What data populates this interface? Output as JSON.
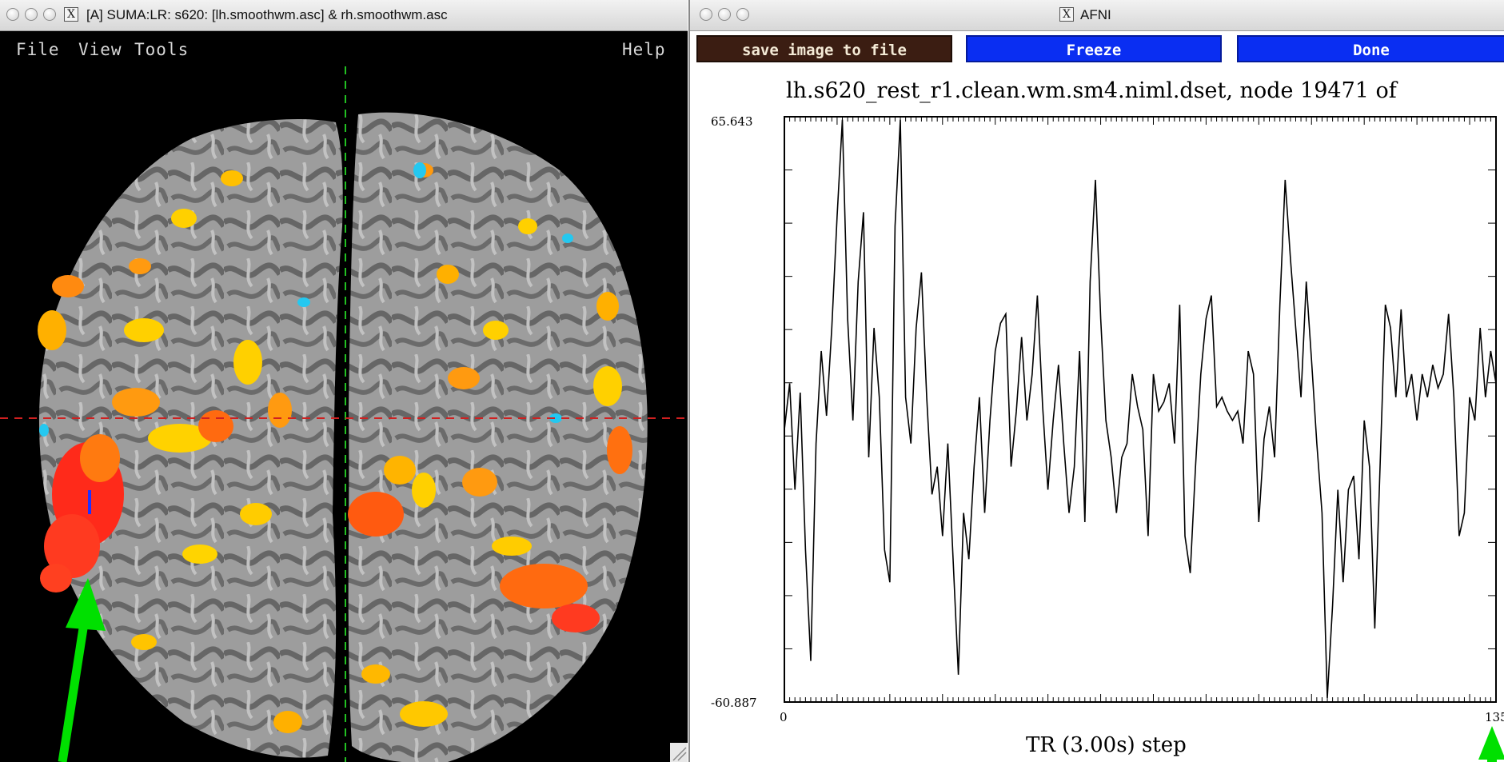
{
  "suma": {
    "title": "[A] SUMA:LR: s620: [lh.smoothwm.asc] & rh.smoothwm.asc",
    "menu": {
      "file": "File",
      "view": "View",
      "tools": "Tools",
      "help": "Help"
    }
  },
  "afni": {
    "title": "AFNI",
    "buttons": {
      "save": "save image to file",
      "freeze": "Freeze",
      "done": "Done"
    }
  },
  "chart_data": {
    "type": "line",
    "title": "lh.s620_rest_r1.clean.wm.sm4.niml.dset, node 19471 of",
    "xlabel": "TR (3.00s) step",
    "ylabel": "",
    "x_tick_labels": [
      "0",
      "135."
    ],
    "y_tick_labels": [
      "65.643",
      "-60.887"
    ],
    "xlim": [
      0,
      135
    ],
    "ylim": [
      -60.887,
      65.643
    ],
    "grid": false,
    "series": [
      {
        "values": [
          -2,
          8,
          -15,
          6,
          -28,
          -52,
          -5,
          15,
          1,
          20,
          44,
          65,
          22,
          0,
          30,
          45,
          -8,
          20,
          5,
          -28,
          -35,
          42,
          65,
          5,
          -5,
          20,
          32,
          5,
          -16,
          -10,
          -25,
          -5,
          -30,
          -55,
          -20,
          -30,
          -10,
          5,
          -20,
          0,
          15,
          21,
          23,
          -10,
          2,
          18,
          0,
          10,
          27,
          3,
          -15,
          0,
          12,
          -5,
          -20,
          -10,
          15,
          -22,
          30,
          52,
          22,
          0,
          -8,
          -20,
          -8,
          -5,
          10,
          3,
          -2,
          -25,
          10,
          2,
          4,
          8,
          -5,
          25,
          -25,
          -33,
          -10,
          10,
          22,
          27,
          3,
          5,
          2,
          0,
          2,
          -5,
          15,
          10,
          -22,
          -4,
          3,
          -8,
          25,
          52,
          35,
          20,
          5,
          30,
          13,
          -5,
          -20,
          -60,
          -40,
          -15,
          -35,
          -15,
          -12,
          -30,
          0,
          -10,
          -45,
          -10,
          25,
          20,
          5,
          24,
          5,
          10,
          0,
          10,
          5,
          12,
          7,
          10,
          23,
          5,
          -25,
          -20,
          5,
          0,
          20,
          5,
          15,
          8
        ]
      }
    ]
  }
}
